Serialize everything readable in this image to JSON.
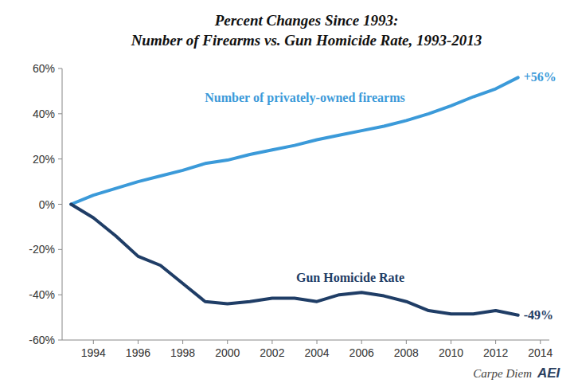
{
  "chart_data": {
    "type": "line",
    "title": "Percent Changes Since 1993:",
    "subtitle": "Number of Firearms vs. Gun Homicide Rate, 1993-2013",
    "credit": "Carpe Diem",
    "logo": "AEI",
    "x": [
      1993,
      1994,
      1995,
      1996,
      1997,
      1998,
      1999,
      2000,
      2001,
      2002,
      2003,
      2004,
      2005,
      2006,
      2007,
      2008,
      2009,
      2010,
      2011,
      2012,
      2013
    ],
    "series": [
      {
        "name": "Number of privately-owned firearms",
        "color": "#3b9ad9",
        "values": [
          0,
          4,
          7,
          10,
          12.5,
          15,
          18,
          19.5,
          22,
          24,
          26,
          28.5,
          30.5,
          32.5,
          34.5,
          37,
          40,
          43.5,
          47.5,
          51,
          56
        ],
        "value_labels": [
          null,
          null,
          null,
          null,
          null,
          null,
          null,
          null,
          null,
          null,
          null,
          null,
          null,
          null,
          null,
          null,
          null,
          null,
          null,
          null,
          "+56%"
        ]
      },
      {
        "name": "Gun Homicide Rate",
        "color": "#1f3d66",
        "values": [
          0,
          -6,
          -14,
          -23,
          -27,
          -35,
          -43,
          -44,
          -43,
          -41.5,
          -41.5,
          -43,
          -40,
          -39,
          -40.5,
          -43,
          -47,
          -48.5,
          -48.5,
          -47,
          -49
        ],
        "value_labels": [
          null,
          null,
          null,
          null,
          null,
          null,
          null,
          null,
          null,
          null,
          null,
          null,
          null,
          null,
          null,
          null,
          null,
          null,
          null,
          null,
          "-49%"
        ]
      }
    ],
    "xlim": [
      1992.6,
      2014.4
    ],
    "xticks": [
      1994,
      1996,
      1998,
      2000,
      2002,
      2004,
      2006,
      2008,
      2010,
      2012,
      2014
    ],
    "ylim": [
      -60,
      60
    ],
    "yticks": [
      {
        "value": -60,
        "label": "-60%"
      },
      {
        "value": -40,
        "label": "-40%"
      },
      {
        "value": -20,
        "label": "-20%"
      },
      {
        "value": 0,
        "label": "0%"
      },
      {
        "value": 20,
        "label": "20%"
      },
      {
        "value": 40,
        "label": "40%"
      },
      {
        "value": 60,
        "label": "60%"
      }
    ],
    "grid": false
  }
}
